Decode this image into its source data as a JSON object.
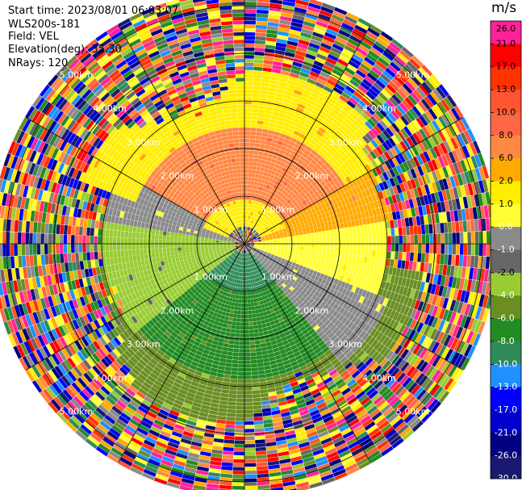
{
  "header": {
    "start_time": "Start time: 2023/08/01 06:03:07",
    "site": "WLS200s-181",
    "field": "Field: VEL",
    "elevation": "Elevation(deg): 35.30",
    "nrays": "NRays: 120"
  },
  "chart_data": {
    "type": "heatmap",
    "projection": "polar-ppi",
    "title": "",
    "nrays": 120,
    "range_rings_km": [
      1.0,
      2.0,
      3.0,
      4.0,
      5.0
    ],
    "ring_labels": [
      "1.00km",
      "2.00km",
      "3.00km",
      "4.00km",
      "5.00km"
    ],
    "azimuth_lines_deg": [
      0,
      30,
      60,
      90,
      120,
      150,
      180,
      210,
      240,
      270,
      300,
      330
    ],
    "max_range_km": 5.3,
    "colorbar": {
      "unit": "m/s",
      "ticks": [
        "26.0",
        "21.0",
        "17.0",
        "13.0",
        "10.0",
        "8.0",
        "6.0",
        "2.0",
        "1.0",
        "0.0",
        "-1.0",
        "-2.0",
        "-4.0",
        "-6.0",
        "-8.0",
        "-10.0",
        "-13.0",
        "-17.0",
        "-21.0",
        "-26.0",
        "-30.0"
      ],
      "colors": [
        "#ff2299",
        "#ff0000",
        "#ff3300",
        "#ff5533",
        "#ff6644",
        "#ff8844",
        "#ffaa00",
        "#ffee00",
        "#ffff33",
        "#8a8a8a",
        "#666666",
        "#99cc33",
        "#6b8e23",
        "#228b22",
        "#2e8b57",
        "#1e90ff",
        "#0000ff",
        "#0000cd",
        "#000080",
        "#191970"
      ]
    },
    "regions": [
      {
        "az": [
          0,
          60
        ],
        "r": [
          0.9,
          2.4
        ],
        "value": 8.0
      },
      {
        "az": [
          300,
          360
        ],
        "r": [
          0.9,
          2.4
        ],
        "value": 8.0
      },
      {
        "az": [
          0,
          70
        ],
        "r": [
          0.3,
          0.9
        ],
        "value": 2.0
      },
      {
        "az": [
          290,
          360
        ],
        "r": [
          0.3,
          0.9
        ],
        "value": 2.0
      },
      {
        "az": [
          60,
          80
        ],
        "r": [
          0.3,
          3.2
        ],
        "value": 6.0
      },
      {
        "az": [
          80,
          110
        ],
        "r": [
          0.2,
          3.0
        ],
        "value": 1.0
      },
      {
        "az": [
          0,
          70
        ],
        "r": [
          2.4,
          3.6
        ],
        "value": 2.0
      },
      {
        "az": [
          290,
          360
        ],
        "r": [
          2.4,
          3.6
        ],
        "value": 2.0
      },
      {
        "az": [
          110,
          140
        ],
        "r": [
          0.2,
          3.2
        ],
        "value": 0.0
      },
      {
        "az": [
          140,
          230
        ],
        "r": [
          0.2,
          1.0
        ],
        "value": -8.0
      },
      {
        "az": [
          140,
          230
        ],
        "r": [
          1.0,
          2.8
        ],
        "value": -6.0
      },
      {
        "az": [
          230,
          280
        ],
        "r": [
          0.2,
          3.0
        ],
        "value": -2.0
      },
      {
        "az": [
          280,
          300
        ],
        "r": [
          0.2,
          3.0
        ],
        "value": 0.0
      },
      {
        "az": [
          100,
          260
        ],
        "r": [
          2.8,
          3.8
        ],
        "value": -4.0
      }
    ]
  }
}
